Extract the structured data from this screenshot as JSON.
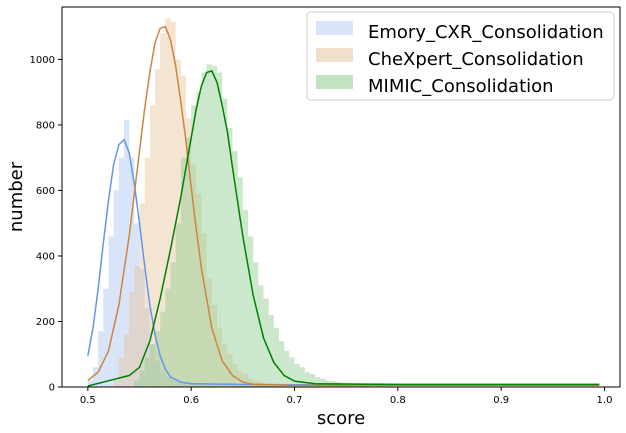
{
  "chart_data": {
    "type": "histogram+line",
    "xlabel": "score",
    "ylabel": "number",
    "xlim": [
      0.475,
      1.015
    ],
    "ylim": [
      0,
      1160
    ],
    "xticks": [
      0.5,
      0.6,
      0.7,
      0.8,
      0.9,
      1.0
    ],
    "xtick_labels": [
      "0.5",
      "0.6",
      "0.7",
      "0.8",
      "0.9",
      "1.0"
    ],
    "yticks": [
      0,
      200,
      400,
      600,
      800,
      1000
    ],
    "ytick_labels": [
      "0",
      "200",
      "400",
      "600",
      "800",
      "1000"
    ],
    "legend_position": "top-right",
    "bin_width": 0.005,
    "series": [
      {
        "name": "Emory_CXR_Consolidation",
        "hist_color": "#a9c4f0",
        "line_color": "#6495ed",
        "bins": [
          [
            0.5,
            20
          ],
          [
            0.505,
            60
          ],
          [
            0.51,
            170
          ],
          [
            0.515,
            300
          ],
          [
            0.52,
            460
          ],
          [
            0.525,
            600
          ],
          [
            0.53,
            700
          ],
          [
            0.535,
            815
          ],
          [
            0.54,
            700
          ],
          [
            0.545,
            500
          ],
          [
            0.55,
            360
          ],
          [
            0.555,
            240
          ],
          [
            0.56,
            130
          ],
          [
            0.565,
            80
          ],
          [
            0.57,
            45
          ],
          [
            0.575,
            30
          ],
          [
            0.58,
            20
          ],
          [
            0.585,
            15
          ],
          [
            0.59,
            12
          ],
          [
            0.595,
            12
          ],
          [
            0.6,
            10
          ],
          [
            0.605,
            10
          ],
          [
            0.61,
            10
          ],
          [
            0.615,
            10
          ],
          [
            0.62,
            10
          ],
          [
            0.625,
            10
          ],
          [
            0.63,
            10
          ],
          [
            0.635,
            10
          ],
          [
            0.64,
            10
          ],
          [
            0.645,
            10
          ],
          [
            0.65,
            8
          ],
          [
            0.655,
            8
          ],
          [
            0.66,
            5
          ],
          [
            0.665,
            5
          ],
          [
            0.67,
            4
          ]
        ],
        "curve": [
          [
            0.5,
            95
          ],
          [
            0.505,
            180
          ],
          [
            0.51,
            300
          ],
          [
            0.515,
            440
          ],
          [
            0.52,
            570
          ],
          [
            0.525,
            680
          ],
          [
            0.53,
            740
          ],
          [
            0.535,
            755
          ],
          [
            0.54,
            715
          ],
          [
            0.545,
            620
          ],
          [
            0.55,
            500
          ],
          [
            0.555,
            370
          ],
          [
            0.56,
            250
          ],
          [
            0.565,
            160
          ],
          [
            0.57,
            95
          ],
          [
            0.575,
            55
          ],
          [
            0.58,
            30
          ],
          [
            0.59,
            15
          ],
          [
            0.6,
            10
          ],
          [
            0.65,
            8
          ],
          [
            0.7,
            7
          ],
          [
            0.8,
            7
          ],
          [
            0.9,
            7
          ],
          [
            0.995,
            7
          ]
        ]
      },
      {
        "name": "CheXpert_Consolidation",
        "hist_color": "#e6c49c",
        "line_color": "#cd853f",
        "bins": [
          [
            0.525,
            20
          ],
          [
            0.53,
            90
          ],
          [
            0.535,
            160
          ],
          [
            0.54,
            290
          ],
          [
            0.545,
            370
          ],
          [
            0.55,
            560
          ],
          [
            0.555,
            700
          ],
          [
            0.56,
            860
          ],
          [
            0.565,
            970
          ],
          [
            0.57,
            1080
          ],
          [
            0.575,
            1125
          ],
          [
            0.58,
            1115
          ],
          [
            0.585,
            1000
          ],
          [
            0.59,
            950
          ],
          [
            0.595,
            820
          ],
          [
            0.6,
            680
          ],
          [
            0.605,
            590
          ],
          [
            0.61,
            470
          ],
          [
            0.615,
            330
          ],
          [
            0.62,
            250
          ],
          [
            0.625,
            180
          ],
          [
            0.63,
            130
          ],
          [
            0.635,
            100
          ],
          [
            0.64,
            70
          ],
          [
            0.645,
            50
          ],
          [
            0.65,
            40
          ],
          [
            0.655,
            25
          ],
          [
            0.66,
            20
          ],
          [
            0.665,
            15
          ],
          [
            0.67,
            10
          ],
          [
            0.675,
            8
          ],
          [
            0.68,
            6
          ],
          [
            0.685,
            4
          ]
        ],
        "curve": [
          [
            0.5,
            20
          ],
          [
            0.51,
            45
          ],
          [
            0.52,
            110
          ],
          [
            0.53,
            250
          ],
          [
            0.54,
            460
          ],
          [
            0.55,
            720
          ],
          [
            0.555,
            850
          ],
          [
            0.56,
            960
          ],
          [
            0.565,
            1050
          ],
          [
            0.57,
            1095
          ],
          [
            0.575,
            1100
          ],
          [
            0.58,
            1060
          ],
          [
            0.585,
            980
          ],
          [
            0.59,
            870
          ],
          [
            0.595,
            750
          ],
          [
            0.6,
            610
          ],
          [
            0.605,
            480
          ],
          [
            0.61,
            360
          ],
          [
            0.62,
            180
          ],
          [
            0.63,
            80
          ],
          [
            0.64,
            35
          ],
          [
            0.65,
            15
          ],
          [
            0.66,
            8
          ],
          [
            0.7,
            5
          ],
          [
            0.8,
            5
          ],
          [
            0.9,
            5
          ],
          [
            0.995,
            5
          ]
        ]
      },
      {
        "name": "MIMIC_Consolidation",
        "hist_color": "#8fcc8f",
        "line_color": "#008000",
        "bins": [
          [
            0.545,
            20
          ],
          [
            0.55,
            50
          ],
          [
            0.555,
            90
          ],
          [
            0.56,
            130
          ],
          [
            0.565,
            170
          ],
          [
            0.57,
            230
          ],
          [
            0.575,
            300
          ],
          [
            0.58,
            380
          ],
          [
            0.585,
            500
          ],
          [
            0.59,
            700
          ],
          [
            0.595,
            760
          ],
          [
            0.6,
            860
          ],
          [
            0.605,
            900
          ],
          [
            0.61,
            960
          ],
          [
            0.615,
            985
          ],
          [
            0.62,
            980
          ],
          [
            0.625,
            960
          ],
          [
            0.63,
            880
          ],
          [
            0.635,
            790
          ],
          [
            0.64,
            720
          ],
          [
            0.645,
            640
          ],
          [
            0.65,
            540
          ],
          [
            0.655,
            460
          ],
          [
            0.66,
            380
          ],
          [
            0.665,
            310
          ],
          [
            0.67,
            270
          ],
          [
            0.675,
            220
          ],
          [
            0.68,
            180
          ],
          [
            0.685,
            140
          ],
          [
            0.69,
            110
          ],
          [
            0.695,
            90
          ],
          [
            0.7,
            70
          ],
          [
            0.705,
            60
          ],
          [
            0.71,
            45
          ],
          [
            0.715,
            40
          ],
          [
            0.72,
            30
          ],
          [
            0.725,
            25
          ],
          [
            0.73,
            20
          ],
          [
            0.735,
            18
          ],
          [
            0.74,
            15
          ],
          [
            0.745,
            12
          ],
          [
            0.75,
            10
          ],
          [
            0.755,
            8
          ],
          [
            0.76,
            6
          ],
          [
            0.765,
            5
          ],
          [
            0.77,
            5
          ],
          [
            0.78,
            4
          ],
          [
            0.79,
            3
          ]
        ],
        "curve": [
          [
            0.5,
            3
          ],
          [
            0.54,
            35
          ],
          [
            0.55,
            60
          ],
          [
            0.56,
            140
          ],
          [
            0.57,
            270
          ],
          [
            0.58,
            420
          ],
          [
            0.59,
            580
          ],
          [
            0.6,
            760
          ],
          [
            0.605,
            850
          ],
          [
            0.61,
            920
          ],
          [
            0.615,
            960
          ],
          [
            0.62,
            965
          ],
          [
            0.625,
            930
          ],
          [
            0.63,
            860
          ],
          [
            0.635,
            780
          ],
          [
            0.64,
            670
          ],
          [
            0.65,
            460
          ],
          [
            0.66,
            280
          ],
          [
            0.67,
            150
          ],
          [
            0.68,
            75
          ],
          [
            0.69,
            35
          ],
          [
            0.7,
            18
          ],
          [
            0.72,
            10
          ],
          [
            0.8,
            8
          ],
          [
            0.9,
            8
          ],
          [
            0.995,
            8
          ]
        ]
      }
    ]
  }
}
